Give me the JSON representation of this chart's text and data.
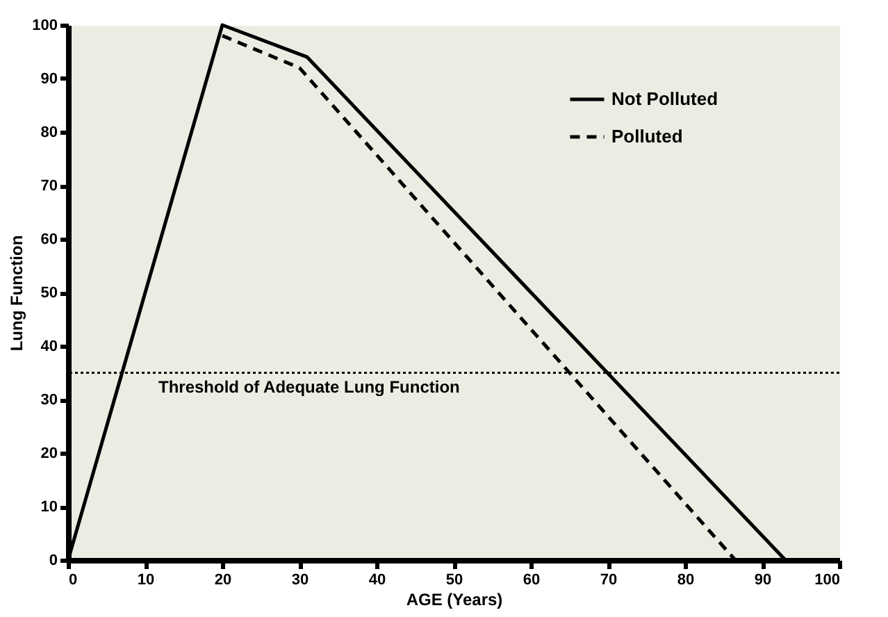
{
  "chart_data": {
    "type": "line",
    "xlabel": "AGE (Years)",
    "ylabel": "Lung Function",
    "series": [
      {
        "name": "Not Polluted",
        "color": "#000000",
        "line_style": "solid",
        "x": [
          0,
          20,
          31,
          93
        ],
        "values": [
          0,
          100,
          94,
          0
        ]
      },
      {
        "name": "Polluted",
        "color": "#000000",
        "line_style": "dashed",
        "x": [
          20,
          30,
          86.5
        ],
        "values": [
          98,
          92,
          0
        ]
      }
    ],
    "xlim": [
      0,
      100
    ],
    "xticks": [
      0,
      10,
      20,
      30,
      40,
      50,
      60,
      70,
      80,
      90,
      100
    ],
    "ylim": [
      0,
      100
    ],
    "yticks": [
      0,
      10,
      20,
      30,
      40,
      50,
      60,
      70,
      80,
      90,
      100
    ],
    "ref_lines": [
      {
        "axis": "y",
        "value": 35,
        "label": "Threshold of Adequate Lung Function",
        "line_style": "dotted",
        "color": "#000000"
      }
    ],
    "grid": false,
    "legend": "top right",
    "marker": "none"
  }
}
